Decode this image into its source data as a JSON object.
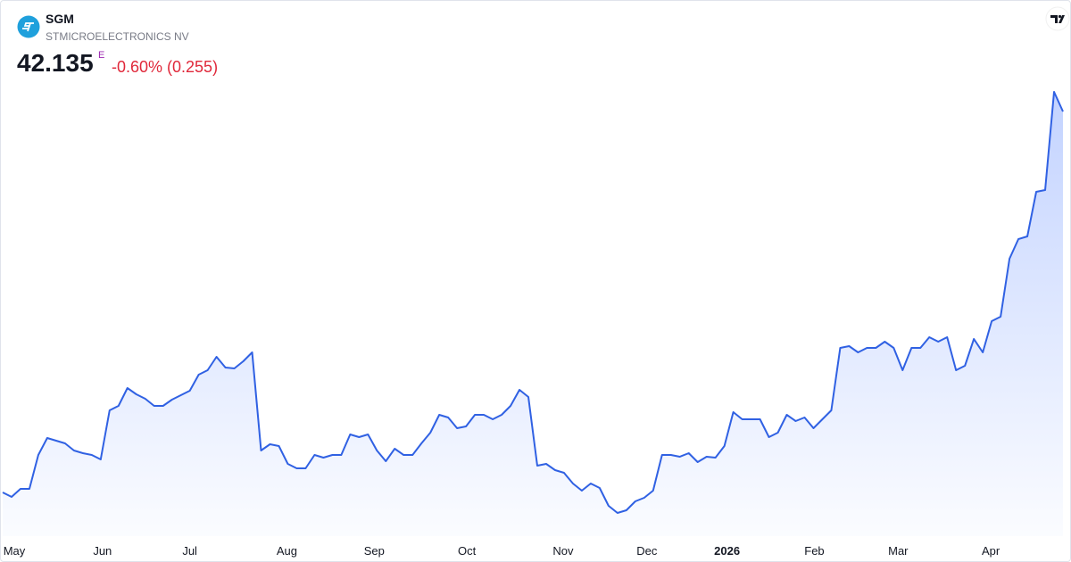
{
  "header": {
    "symbol": "SGM",
    "name": "STMICROELECTRONICS NV",
    "price": 42.135,
    "exchange_flag": "E",
    "change": "-0.60% (0.255)"
  },
  "chart_data": {
    "type": "area",
    "color": "#3061e3",
    "values": [
      20.785,
      20.535,
      20.985,
      20.985,
      22.885,
      23.835,
      23.685,
      23.535,
      23.135,
      22.985,
      22.885,
      22.635,
      25.385,
      25.635,
      26.635,
      26.285,
      26.035,
      25.635,
      25.635,
      25.985,
      26.235,
      26.485,
      27.385,
      27.635,
      28.385,
      27.785,
      27.735,
      28.135,
      28.635,
      23.135,
      23.485,
      23.385,
      22.385,
      22.135,
      22.135,
      22.885,
      22.735,
      22.885,
      22.885,
      24.035,
      23.885,
      24.035,
      23.135,
      22.535,
      23.235,
      22.885,
      22.885,
      23.535,
      24.135,
      25.135,
      24.985,
      24.385,
      24.485,
      25.135,
      25.135,
      24.885,
      25.135,
      25.635,
      26.535,
      26.135,
      22.285,
      22.385,
      22.035,
      21.885,
      21.285,
      20.885,
      21.285,
      21.035,
      20.035,
      19.635,
      19.785,
      20.285,
      20.485,
      20.885,
      22.885,
      22.885,
      22.785,
      22.985,
      22.485,
      22.785,
      22.735,
      23.385,
      25.285,
      24.885,
      24.885,
      24.885,
      23.885,
      24.135,
      25.135,
      24.785,
      24.985,
      24.385,
      24.885,
      25.385,
      28.885,
      28.985,
      28.635,
      28.885,
      28.885,
      29.235,
      28.885,
      27.635,
      28.885,
      28.885,
      29.485,
      29.235,
      29.485,
      27.635,
      27.885,
      29.385,
      28.635,
      30.385,
      30.635,
      33.885,
      34.985,
      35.135,
      37.635,
      37.735,
      43.235,
      42.135
    ],
    "xticks": [
      {
        "value": 1.3,
        "label": "May"
      },
      {
        "value": 11.2,
        "label": "Jun"
      },
      {
        "value": 21.0,
        "label": "Jul"
      },
      {
        "value": 31.9,
        "label": "Aug"
      },
      {
        "value": 41.7,
        "label": "Sep"
      },
      {
        "value": 52.1,
        "label": "Oct"
      },
      {
        "value": 62.9,
        "label": "Nov"
      },
      {
        "value": 72.3,
        "label": "Dec"
      },
      {
        "value": 81.3,
        "label": "2026"
      },
      {
        "value": 91.1,
        "label": "Feb"
      },
      {
        "value": 100.5,
        "label": "Mar"
      },
      {
        "value": 110.9,
        "label": "Apr"
      }
    ]
  }
}
